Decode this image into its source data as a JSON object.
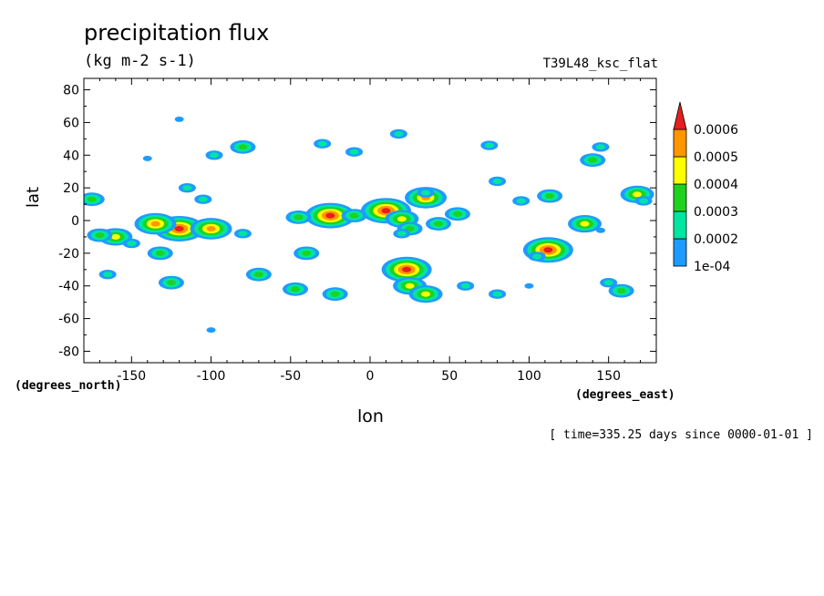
{
  "chart_data": {
    "type": "contour",
    "title": "precipitation flux",
    "units": "(kg m-2 s-1)",
    "run_label": "T39L48_ksc_flat",
    "xlabel": "lon",
    "ylabel": "lat",
    "x_units": "(degrees_east)",
    "y_units": "(degrees_north)",
    "time_label": "[ time=335.25 days since 0000-01-01 ]",
    "xlim": [
      -180,
      180
    ],
    "ylim": [
      -87,
      87
    ],
    "x_ticks": [
      -150,
      -100,
      -50,
      0,
      50,
      100,
      150
    ],
    "y_ticks": [
      -80,
      -60,
      -40,
      -20,
      0,
      20,
      40,
      60,
      80
    ],
    "levels": [
      0.0001,
      0.0002,
      0.0003,
      0.0004,
      0.0005,
      0.0006
    ],
    "level_labels": [
      "1e-04",
      "0.0002",
      "0.0003",
      "0.0004",
      "0.0005",
      "0.0006"
    ],
    "colors": [
      "#1e9bff",
      "#00e6a0",
      "#1ed21e",
      "#ffff00",
      "#ff9600",
      "#e61e1e"
    ],
    "colorbar_extend": "max",
    "cells": [
      {
        "lon": 10,
        "lat": 6,
        "level": 6
      },
      {
        "lon": 20,
        "lat": 1,
        "level": 4
      },
      {
        "lon": 25,
        "lat": -5,
        "level": 3
      },
      {
        "lon": 20,
        "lat": -8,
        "level": 2
      },
      {
        "lon": 35,
        "lat": 14,
        "level": 5
      },
      {
        "lon": 43,
        "lat": -2,
        "level": 3
      },
      {
        "lon": 55,
        "lat": 4,
        "level": 3
      },
      {
        "lon": -25,
        "lat": 3,
        "level": 6
      },
      {
        "lon": 23,
        "lat": -30,
        "level": 6
      },
      {
        "lon": 25,
        "lat": -40,
        "level": 4
      },
      {
        "lon": 35,
        "lat": -45,
        "level": 4
      },
      {
        "lon": 112,
        "lat": -18,
        "level": 6
      },
      {
        "lon": -120,
        "lat": -5,
        "level": 6
      },
      {
        "lon": -135,
        "lat": -2,
        "level": 5
      },
      {
        "lon": -100,
        "lat": -5,
        "level": 5
      },
      {
        "lon": -160,
        "lat": -10,
        "level": 4
      },
      {
        "lon": -170,
        "lat": -9,
        "level": 3
      },
      {
        "lon": -150,
        "lat": -14,
        "level": 2
      },
      {
        "lon": -132,
        "lat": -20,
        "level": 3
      },
      {
        "lon": 35,
        "lat": 17,
        "level": 2
      },
      {
        "lon": 105,
        "lat": -22,
        "level": 2
      },
      {
        "lon": 168,
        "lat": 16,
        "level": 4
      },
      {
        "lon": 172,
        "lat": 12,
        "level": 2
      },
      {
        "lon": 135,
        "lat": -2,
        "level": 4
      },
      {
        "lon": -45,
        "lat": 2,
        "level": 3
      },
      {
        "lon": -40,
        "lat": -20,
        "level": 3
      },
      {
        "lon": -47,
        "lat": -42,
        "level": 3
      },
      {
        "lon": -125,
        "lat": -38,
        "level": 3
      },
      {
        "lon": -22,
        "lat": -45,
        "level": 3
      },
      {
        "lon": 80,
        "lat": -45,
        "level": 2
      },
      {
        "lon": 150,
        "lat": -38,
        "level": 2
      },
      {
        "lon": 158,
        "lat": -43,
        "level": 3
      },
      {
        "lon": 140,
        "lat": 37,
        "level": 3
      },
      {
        "lon": 145,
        "lat": 45,
        "level": 2
      },
      {
        "lon": 113,
        "lat": 15,
        "level": 3
      },
      {
        "lon": 95,
        "lat": 12,
        "level": 2
      },
      {
        "lon": 18,
        "lat": 53,
        "level": 2
      },
      {
        "lon": -10,
        "lat": 42,
        "level": 2
      },
      {
        "lon": 75,
        "lat": 46,
        "level": 2
      },
      {
        "lon": -115,
        "lat": 20,
        "level": 2
      },
      {
        "lon": -80,
        "lat": 45,
        "level": 3
      },
      {
        "lon": -98,
        "lat": 40,
        "level": 2
      },
      {
        "lon": -165,
        "lat": -33,
        "level": 2
      },
      {
        "lon": -175,
        "lat": 13,
        "level": 3
      },
      {
        "lon": -10,
        "lat": 3,
        "level": 3
      },
      {
        "lon": 80,
        "lat": 24,
        "level": 2
      },
      {
        "lon": -105,
        "lat": 13,
        "level": 2
      },
      {
        "lon": -70,
        "lat": -33,
        "level": 3
      },
      {
        "lon": 60,
        "lat": -40,
        "level": 2
      },
      {
        "lon": -30,
        "lat": 47,
        "level": 2
      },
      {
        "lon": -80,
        "lat": -8,
        "level": 2
      },
      {
        "lon": -140,
        "lat": 38,
        "level": 1
      },
      {
        "lon": -120,
        "lat": 62,
        "level": 1
      },
      {
        "lon": -100,
        "lat": -67,
        "level": 1
      },
      {
        "lon": 100,
        "lat": -40,
        "level": 1
      },
      {
        "lon": 145,
        "lat": -6,
        "level": 1
      }
    ]
  }
}
